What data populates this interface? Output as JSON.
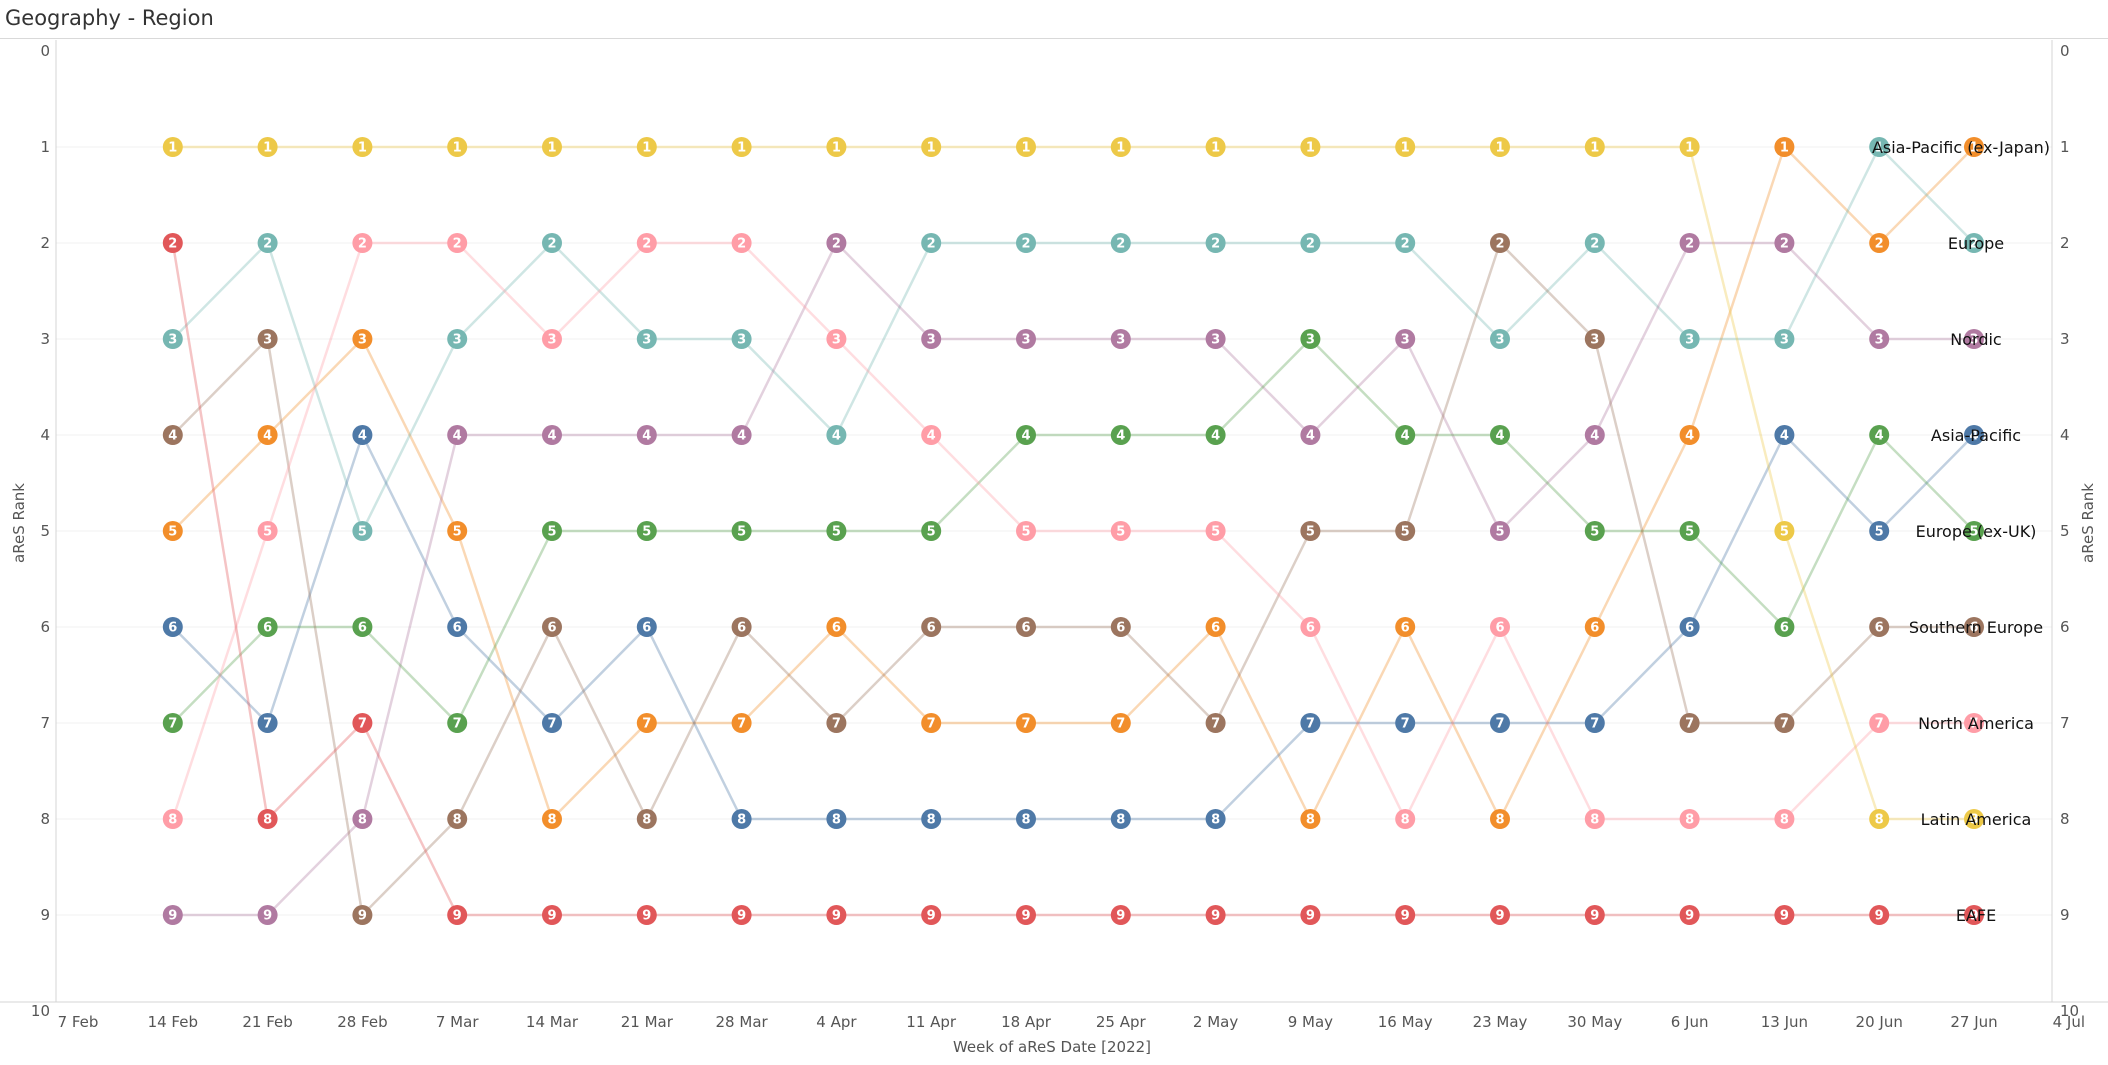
{
  "title": "Geography - Region",
  "chart_data": {
    "type": "line",
    "subtype": "bump-chart",
    "x_label": "Week of aReS Date [2022]",
    "y_label_left": "aReS Rank",
    "y_label_right": "aReS Rank",
    "ylim": [
      0,
      10
    ],
    "y_reversed": true,
    "y_ticks": [
      "0",
      "1",
      "2",
      "3",
      "4",
      "5",
      "6",
      "7",
      "8",
      "9",
      "10"
    ],
    "x_ticks": [
      "7 Feb",
      "14 Feb",
      "21 Feb",
      "28 Feb",
      "7 Mar",
      "14 Mar",
      "21 Mar",
      "28 Mar",
      "4 Apr",
      "11 Apr",
      "18 Apr",
      "25 Apr",
      "2 May",
      "9 May",
      "16 May",
      "23 May",
      "30 May",
      "6 Jun",
      "13 Jun",
      "20 Jun",
      "27 Jun",
      "4 Jul"
    ],
    "x": [
      "14 Feb",
      "21 Feb",
      "28 Feb",
      "7 Mar",
      "14 Mar",
      "21 Mar",
      "28 Mar",
      "4 Apr",
      "11 Apr",
      "18 Apr",
      "25 Apr",
      "2 May",
      "9 May",
      "16 May",
      "23 May",
      "30 May",
      "6 Jun",
      "13 Jun",
      "20 Jun",
      "27 Jun"
    ],
    "grid": true,
    "series": [
      {
        "name": "Asia-Pacific (ex-Japan)",
        "color": "#F28E2B",
        "values": [
          5,
          4,
          3,
          5,
          8,
          7,
          7,
          6,
          7,
          7,
          7,
          6,
          8,
          6,
          8,
          6,
          4,
          1,
          2,
          1
        ]
      },
      {
        "name": "Europe",
        "color": "#76B7B2",
        "values": [
          3,
          2,
          5,
          3,
          2,
          3,
          3,
          4,
          2,
          2,
          2,
          2,
          2,
          2,
          3,
          2,
          3,
          3,
          1,
          2
        ]
      },
      {
        "name": "Nordic",
        "color": "#B07AA1",
        "values": [
          9,
          9,
          8,
          4,
          4,
          4,
          4,
          2,
          3,
          3,
          3,
          3,
          4,
          3,
          5,
          4,
          2,
          2,
          3,
          3
        ]
      },
      {
        "name": "Asia-Pacific",
        "color": "#4E79A7",
        "values": [
          6,
          7,
          4,
          6,
          7,
          6,
          8,
          8,
          8,
          8,
          8,
          8,
          7,
          7,
          7,
          7,
          6,
          4,
          5,
          4
        ]
      },
      {
        "name": "Europe (ex-UK)",
        "color": "#59A14F",
        "values": [
          7,
          6,
          6,
          7,
          5,
          5,
          5,
          5,
          5,
          4,
          4,
          4,
          3,
          4,
          4,
          5,
          5,
          6,
          4,
          5
        ]
      },
      {
        "name": "Southern Europe",
        "color": "#9C755F",
        "values": [
          4,
          3,
          9,
          8,
          6,
          8,
          6,
          7,
          6,
          6,
          6,
          7,
          5,
          5,
          2,
          3,
          7,
          7,
          6,
          6
        ]
      },
      {
        "name": "North America",
        "color": "#FF9DA7",
        "values": [
          8,
          5,
          2,
          2,
          3,
          2,
          2,
          3,
          4,
          5,
          5,
          5,
          6,
          8,
          6,
          8,
          8,
          8,
          7,
          7
        ]
      },
      {
        "name": "Latin America",
        "color": "#EDC948",
        "values": [
          1,
          1,
          1,
          1,
          1,
          1,
          1,
          1,
          1,
          1,
          1,
          1,
          1,
          1,
          1,
          1,
          1,
          5,
          8,
          8
        ]
      },
      {
        "name": "EAFE",
        "color": "#E15759",
        "values": [
          2,
          8,
          7,
          9,
          9,
          9,
          9,
          9,
          9,
          9,
          9,
          9,
          9,
          9,
          9,
          9,
          9,
          9,
          9,
          9
        ]
      }
    ]
  }
}
